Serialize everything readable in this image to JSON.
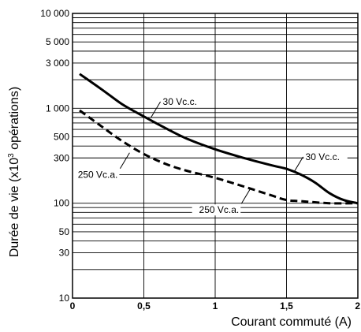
{
  "chart_data": {
    "type": "line",
    "title": "",
    "xlabel": "Courant commuté (A)",
    "ylabel": "Durée de vie (x10³ opérations)",
    "ylabel_parts": [
      "Durée de vie (x10",
      "3",
      " opérations)"
    ],
    "xlim": [
      0,
      2
    ],
    "ylim": [
      10,
      10000
    ],
    "y_scale": "log",
    "grid": true,
    "y_gridlines": [
      10,
      20,
      30,
      40,
      50,
      60,
      70,
      80,
      90,
      100,
      200,
      300,
      400,
      500,
      600,
      700,
      800,
      900,
      1000,
      2000,
      3000,
      4000,
      5000,
      6000,
      7000,
      8000,
      9000,
      10000
    ],
    "x_gridlines": [
      0,
      0.5,
      1,
      1.5,
      2
    ],
    "y_ticks": [
      {
        "value": 10,
        "label": "10"
      },
      {
        "value": 30,
        "label": "30"
      },
      {
        "value": 50,
        "label": "50"
      },
      {
        "value": 100,
        "label": "100"
      },
      {
        "value": 300,
        "label": "300"
      },
      {
        "value": 500,
        "label": "500"
      },
      {
        "value": 1000,
        "label": "1 000"
      },
      {
        "value": 3000,
        "label": "3 000"
      },
      {
        "value": 5000,
        "label": "5 000"
      },
      {
        "value": 10000,
        "label": "10 000"
      }
    ],
    "x_ticks": [
      {
        "value": 0,
        "label": "0"
      },
      {
        "value": 0.5,
        "label": "0,5"
      },
      {
        "value": 1,
        "label": "1"
      },
      {
        "value": 1.5,
        "label": "1,5"
      },
      {
        "value": 2,
        "label": "2"
      }
    ],
    "series": [
      {
        "name": "30 Vc.c.",
        "style": "solid",
        "color": "#000000",
        "x": [
          0.05,
          0.2,
          0.35,
          0.5,
          0.65,
          0.8,
          1.0,
          1.2,
          1.4,
          1.5,
          1.6,
          1.7,
          1.8,
          1.9,
          2.0
        ],
        "y": [
          2300,
          1600,
          1100,
          820,
          620,
          480,
          370,
          300,
          250,
          230,
          200,
          165,
          128,
          108,
          100
        ]
      },
      {
        "name": "250 Vc.a.",
        "style": "dashed",
        "color": "#000000",
        "x": [
          0.05,
          0.2,
          0.35,
          0.5,
          0.65,
          0.8,
          1.0,
          1.2,
          1.4,
          1.5,
          1.6,
          1.8,
          2.0
        ],
        "y": [
          950,
          650,
          450,
          330,
          260,
          220,
          185,
          150,
          120,
          108,
          105,
          100,
          100
        ]
      }
    ],
    "annotations": [
      {
        "text": "30 Vc.c.",
        "target_x": 0.55,
        "target_y": 800,
        "placement": "upper-right"
      },
      {
        "text": "30 Vc.c.",
        "target_x": 1.55,
        "target_y": 210,
        "placement": "upper-right"
      },
      {
        "text": "250 Vc.a.",
        "target_x": 0.4,
        "target_y": 340,
        "placement": "lower-left"
      },
      {
        "text": "250 Vc.a.",
        "target_x": 1.25,
        "target_y": 145,
        "placement": "lower-left"
      }
    ]
  }
}
